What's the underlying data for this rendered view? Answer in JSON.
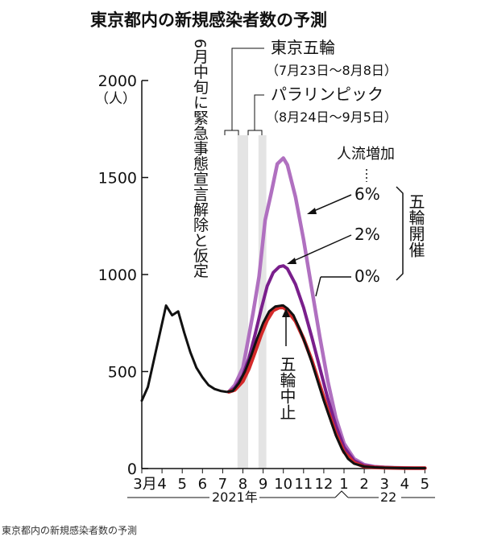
{
  "caption": "東京都内の新規感染者数の予測",
  "chart_data": {
    "type": "line",
    "title": "東京都内の新規感染者数の予測",
    "ylabel": "（人）",
    "ylim": [
      0,
      2000
    ],
    "yticks": [
      0,
      500,
      1000,
      1500,
      2000
    ],
    "month_ticks": [
      "3月",
      "4",
      "5",
      "6",
      "7",
      "8",
      "9",
      "10",
      "11",
      "12",
      "1",
      "2",
      "3",
      "4",
      "5"
    ],
    "year_labels": [
      "2021年",
      "22"
    ],
    "grid": false,
    "annotations": {
      "emergency_text": "6月中旬に緊急事態宣言解除と仮定",
      "olympics": {
        "label": "東京五輪",
        "period": "（7月23日〜8月8日）",
        "start": 4.73,
        "end": 5.26
      },
      "paralympics": {
        "label": "パラリンピック",
        "period": "（8月24日〜9月5日）",
        "start": 5.77,
        "end": 6.16
      },
      "flow_header": "人流増加",
      "held_label": "五輪開催",
      "cancel_label": "五輪中止"
    },
    "series": [
      {
        "name": "6%",
        "color": "#b070c0",
        "x": [
          4.3,
          4.6,
          5.0,
          5.2,
          5.5,
          5.8,
          6.1,
          6.4,
          6.7,
          7.0,
          7.2,
          7.6,
          8.0,
          8.4,
          8.8,
          9.2,
          9.6,
          10.0,
          10.5,
          11.0,
          11.5,
          12.0,
          12.5,
          13.0,
          13.5,
          14.0
        ],
        "y": [
          395,
          430,
          520,
          630,
          800,
          990,
          1280,
          1420,
          1570,
          1600,
          1565,
          1400,
          1180,
          930,
          680,
          450,
          260,
          130,
          50,
          20,
          10,
          6,
          4,
          3,
          2,
          2
        ]
      },
      {
        "name": "2%",
        "color": "#7a1f8c",
        "x": [
          4.3,
          4.6,
          5.0,
          5.3,
          5.6,
          5.9,
          6.2,
          6.5,
          6.8,
          7.0,
          7.2,
          7.6,
          8.0,
          8.4,
          8.8,
          9.2,
          9.6,
          10.0,
          10.5,
          11.0,
          11.5,
          12.0,
          12.5,
          13.0,
          13.5,
          14.0
        ],
        "y": [
          395,
          415,
          480,
          570,
          690,
          820,
          940,
          1010,
          1040,
          1045,
          1030,
          950,
          830,
          680,
          520,
          360,
          220,
          110,
          40,
          15,
          8,
          5,
          4,
          3,
          2,
          2
        ]
      },
      {
        "name": "0%",
        "color": "#d42a2a",
        "x": [
          4.3,
          4.6,
          5.0,
          5.3,
          5.6,
          5.9,
          6.2,
          6.5,
          6.8,
          7.0,
          7.2,
          7.6,
          8.0,
          8.4,
          8.8,
          9.2,
          9.6,
          10.0,
          10.5,
          11.0,
          11.5,
          12.0,
          12.5,
          13.0,
          13.5,
          14.0
        ],
        "y": [
          395,
          405,
          450,
          515,
          600,
          690,
          765,
          815,
          830,
          830,
          815,
          760,
          670,
          560,
          430,
          300,
          180,
          85,
          30,
          10,
          6,
          4,
          3,
          2,
          2,
          2
        ]
      },
      {
        "name": "五輪中止",
        "color": "#111111",
        "x": [
          0.0,
          0.3,
          0.6,
          0.9,
          1.2,
          1.5,
          1.8,
          2.1,
          2.4,
          2.7,
          3.0,
          3.3,
          3.6,
          3.9,
          4.2,
          4.5,
          4.8,
          5.1,
          5.4,
          5.7,
          6.0,
          6.3,
          6.6,
          6.9,
          7.0,
          7.2,
          7.5,
          7.8,
          8.1,
          8.4,
          8.7,
          9.0,
          9.3,
          9.6,
          9.9,
          10.2,
          10.5,
          11.0,
          11.5,
          12.0,
          12.5,
          13.0,
          13.5,
          14.0
        ],
        "y": [
          350,
          420,
          560,
          700,
          840,
          790,
          810,
          700,
          600,
          520,
          470,
          430,
          410,
          400,
          395,
          400,
          440,
          500,
          580,
          670,
          750,
          810,
          835,
          840,
          840,
          825,
          790,
          720,
          640,
          550,
          450,
          350,
          260,
          170,
          100,
          50,
          25,
          10,
          6,
          4,
          3,
          2,
          2,
          2
        ]
      }
    ]
  }
}
